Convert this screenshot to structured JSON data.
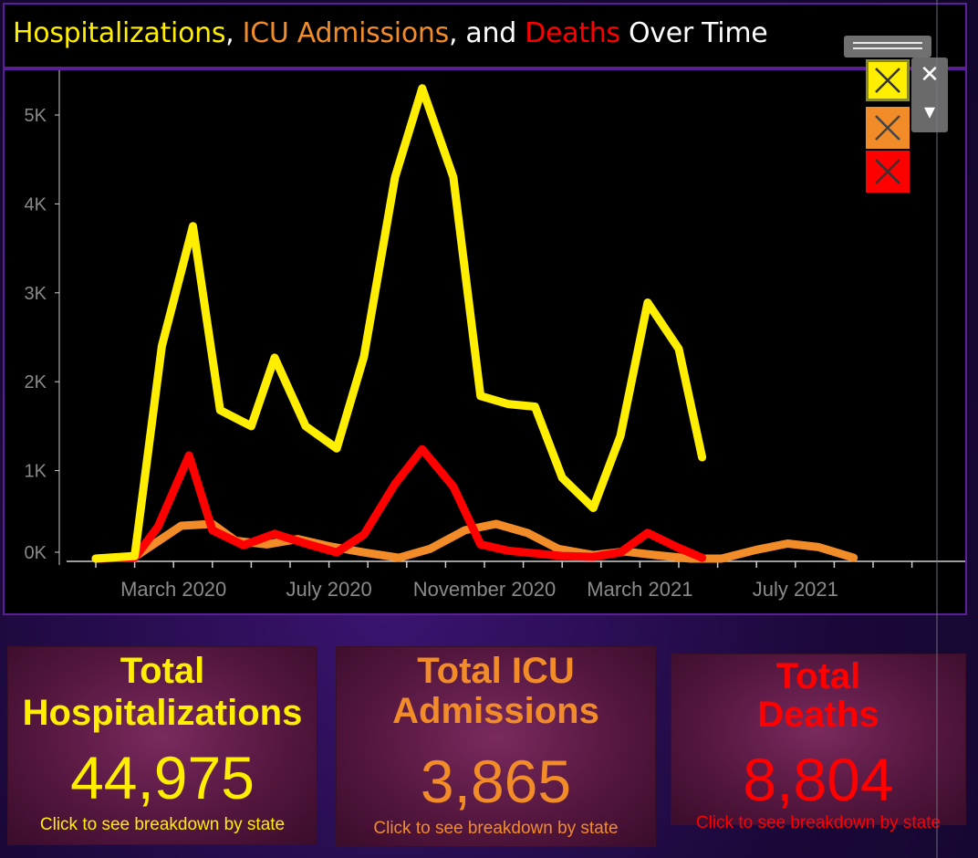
{
  "title": {
    "part1": "Hospitalizations",
    "sep1": ", ",
    "part2": "ICU Admissions",
    "sep2": ", and ",
    "part3": "Deaths",
    "part4": " Over Time"
  },
  "colors": {
    "hospitalizations": "#ffee00",
    "icu": "#f28c28",
    "deaths": "#ff0000",
    "panel_border": "#5a1e96",
    "axis_text": "#8a8a8a"
  },
  "legend": {
    "items": [
      {
        "icon": "close-x-icon",
        "color": "#ffee00"
      },
      {
        "icon": "close-x-icon",
        "color": "#f28c28"
      },
      {
        "icon": "close-x-icon",
        "color": "#ff0000"
      }
    ],
    "close_glyph": "✕",
    "dropdown_glyph": "▾"
  },
  "chart_data": {
    "type": "line",
    "title": "Hospitalizations, ICU Admissions, and Deaths Over Time",
    "y_ticks": [
      "0K",
      "1K",
      "2K",
      "3K",
      "4K",
      "5K"
    ],
    "x_tick_labels": [
      {
        "label": "March 2020",
        "month_index": 3
      },
      {
        "label": "July 2020",
        "month_index": 7
      },
      {
        "label": "November 2020",
        "month_index": 11
      },
      {
        "label": "March 2021",
        "month_index": 15
      },
      {
        "label": "July 2021",
        "month_index": 19
      }
    ],
    "ylim": [
      0,
      5400
    ],
    "grid": false,
    "series": [
      {
        "name": "Hospitalizations",
        "color": "#ffee00",
        "points": [
          [
            1.0,
            10
          ],
          [
            2.0,
            40
          ],
          [
            2.7,
            2400
          ],
          [
            3.5,
            3750
          ],
          [
            4.2,
            1680
          ],
          [
            5.0,
            1500
          ],
          [
            5.6,
            2270
          ],
          [
            6.4,
            1500
          ],
          [
            7.2,
            1250
          ],
          [
            7.9,
            2280
          ],
          [
            8.7,
            4300
          ],
          [
            9.4,
            5300
          ],
          [
            10.2,
            4300
          ],
          [
            10.9,
            1840
          ],
          [
            11.6,
            1750
          ],
          [
            12.3,
            1720
          ],
          [
            13.0,
            920
          ],
          [
            13.8,
            580
          ],
          [
            14.5,
            1390
          ],
          [
            15.2,
            2890
          ],
          [
            16.0,
            2370
          ],
          [
            16.6,
            1150
          ]
        ]
      },
      {
        "name": "ICU Admissions",
        "color": "#f28c28",
        "points": [
          [
            1.0,
            10
          ],
          [
            2.0,
            30
          ],
          [
            3.2,
            380
          ],
          [
            4.0,
            400
          ],
          [
            4.6,
            210
          ],
          [
            5.4,
            170
          ],
          [
            6.2,
            230
          ],
          [
            7.0,
            150
          ],
          [
            7.9,
            80
          ],
          [
            8.8,
            20
          ],
          [
            9.6,
            120
          ],
          [
            10.5,
            330
          ],
          [
            11.3,
            400
          ],
          [
            12.1,
            300
          ],
          [
            12.9,
            120
          ],
          [
            13.8,
            50
          ],
          [
            14.6,
            90
          ],
          [
            15.4,
            50
          ],
          [
            16.3,
            10
          ],
          [
            17.1,
            10
          ],
          [
            18.0,
            110
          ],
          [
            18.8,
            180
          ],
          [
            19.6,
            140
          ],
          [
            20.5,
            20
          ]
        ]
      },
      {
        "name": "Deaths",
        "color": "#ff0000",
        "points": [
          [
            1.0,
            10
          ],
          [
            2.0,
            20
          ],
          [
            2.6,
            370
          ],
          [
            3.4,
            1170
          ],
          [
            4.0,
            330
          ],
          [
            4.8,
            160
          ],
          [
            5.6,
            290
          ],
          [
            6.4,
            180
          ],
          [
            7.2,
            80
          ],
          [
            7.9,
            280
          ],
          [
            8.7,
            850
          ],
          [
            9.4,
            1240
          ],
          [
            10.2,
            820
          ],
          [
            10.9,
            170
          ],
          [
            11.6,
            100
          ],
          [
            12.3,
            70
          ],
          [
            13.0,
            40
          ],
          [
            13.8,
            30
          ],
          [
            14.5,
            80
          ],
          [
            15.2,
            300
          ],
          [
            16.0,
            130
          ],
          [
            16.6,
            20
          ]
        ]
      }
    ]
  },
  "kpis": [
    {
      "title_line1": "Total",
      "title_line2": "Hospitalizations",
      "value": "44,975",
      "subtitle": "Click to see breakdown by state",
      "color": "#ffee00"
    },
    {
      "title_line1": "Total ICU",
      "title_line2": "Admissions",
      "value": "3,865",
      "subtitle": "Click to see breakdown by state",
      "color": "#f28c28"
    },
    {
      "title_line1": "Total",
      "title_line2": "Deaths",
      "value": "8,804",
      "subtitle": "Click to see breakdown by state",
      "color": "#ff0000"
    }
  ]
}
